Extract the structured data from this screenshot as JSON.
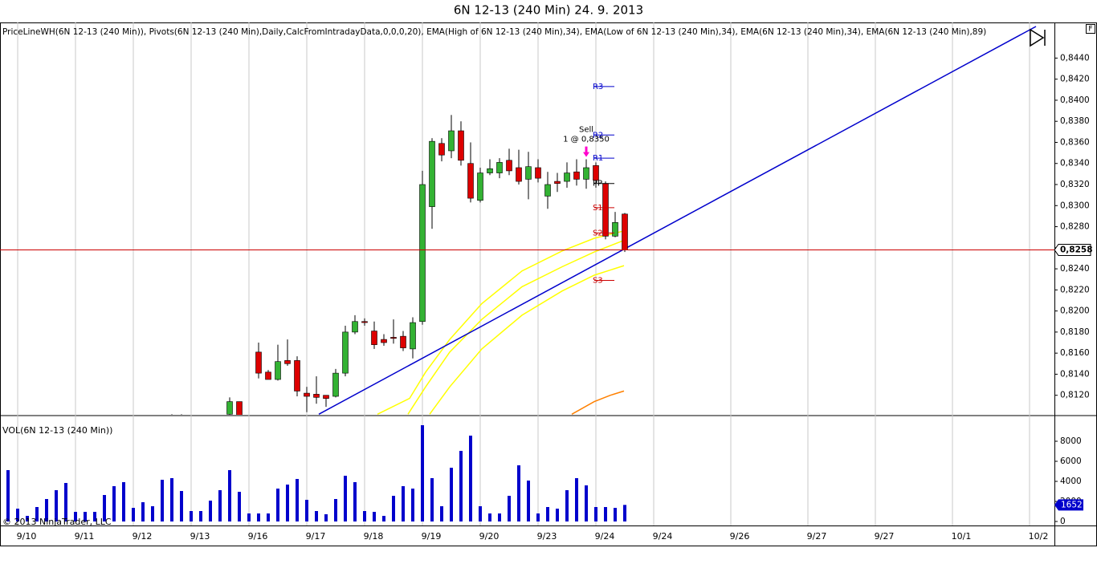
{
  "chart_data": [
    {
      "type": "candlestick",
      "title": "6N 12-13 (240 Min)  24. 9. 2013",
      "legend_text": "PriceLineWH(6N 12-13 (240 Min)), Pivots(6N 12-13 (240 Min),Daily,CalcFromIntradayData,0,0,0,20), EMA(High of 6N 12-13 (240 Min),34), EMA(Low of 6N 12-13 (240 Min),34), EMA(6N 12-13 (240 Min),34), EMA(6N 12-13 (240 Min),89)",
      "button_label": "F",
      "up_color": "#33b233",
      "down_color": "#dd0000",
      "xlim": [
        -0.8333,
        108.5833
      ],
      "ylim": [
        0.81015,
        0.84738
      ],
      "yticks": [
        {
          "value": 0.812,
          "label": "0,8120"
        },
        {
          "value": 0.814,
          "label": "0,8140"
        },
        {
          "value": 0.816,
          "label": "0,8160"
        },
        {
          "value": 0.818,
          "label": "0,8180"
        },
        {
          "value": 0.82,
          "label": "0,8200"
        },
        {
          "value": 0.822,
          "label": "0,8220"
        },
        {
          "value": 0.824,
          "label": "0,8240"
        },
        {
          "value": 0.826,
          "label": "0,8260"
        },
        {
          "value": 0.828,
          "label": "0,8280"
        },
        {
          "value": 0.83,
          "label": "0,8300"
        },
        {
          "value": 0.832,
          "label": "0,8320"
        },
        {
          "value": 0.834,
          "label": "0,8340"
        },
        {
          "value": 0.836,
          "label": "0,8360"
        },
        {
          "value": 0.838,
          "label": "0,8380"
        },
        {
          "value": 0.84,
          "label": "0,8400"
        },
        {
          "value": 0.842,
          "label": "0,8420"
        },
        {
          "value": 0.844,
          "label": "0,8440"
        }
      ],
      "x": [
        0,
        1,
        2,
        3,
        4,
        5,
        6,
        7,
        8,
        9,
        10,
        11,
        12,
        13,
        14,
        15,
        16,
        17,
        18,
        19,
        20,
        21,
        22,
        23,
        24,
        25,
        26,
        27,
        28,
        29,
        30,
        31,
        32,
        33,
        34,
        35,
        36,
        37,
        38,
        39,
        40,
        41,
        42,
        43,
        44,
        45,
        46,
        47,
        48,
        49,
        50,
        51,
        52,
        53,
        54,
        55,
        56,
        57,
        58,
        59,
        60,
        61,
        62,
        63,
        64
      ],
      "open": [
        null,
        null,
        null,
        null,
        null,
        null,
        null,
        null,
        null,
        null,
        null,
        null,
        null,
        null,
        null,
        null,
        null,
        0.8097,
        0.8099,
        null,
        null,
        null,
        null,
        0.8102,
        0.8114,
        null,
        0.8161,
        0.8142,
        0.8135,
        0.8153,
        0.8153,
        0.8122,
        0.8121,
        0.812,
        0.8119,
        0.8141,
        0.818,
        0.819,
        0.8181,
        0.8173,
        0.8175,
        0.8176,
        0.8164,
        0.819,
        0.8299,
        0.8359,
        0.8352,
        0.8371,
        0.834,
        0.8305,
        0.8331,
        0.8331,
        0.8343,
        0.8336,
        0.8325,
        0.8336,
        0.8309,
        0.8323,
        0.8323,
        0.8332,
        0.8325,
        0.8338,
        0.8321,
        0.8271,
        0.8292
      ],
      "high": [
        null,
        null,
        null,
        null,
        null,
        null,
        null,
        null,
        null,
        null,
        null,
        null,
        null,
        null,
        null,
        null,
        null,
        0.8102,
        0.8102,
        null,
        null,
        null,
        null,
        0.8118,
        0.8114,
        null,
        0.817,
        0.8144,
        0.8168,
        0.8173,
        0.8157,
        0.8128,
        0.8138,
        0.812,
        0.8145,
        0.8186,
        0.8196,
        0.8193,
        0.819,
        0.8178,
        0.8192,
        0.8181,
        0.8194,
        0.8333,
        0.8364,
        0.8364,
        0.8386,
        0.838,
        0.836,
        0.8336,
        0.8344,
        0.8345,
        0.8354,
        0.8353,
        0.8351,
        0.8344,
        0.8332,
        0.8331,
        0.8341,
        0.8344,
        0.8344,
        0.8341,
        0.8323,
        0.8294,
        0.8293
      ],
      "low": [
        null,
        null,
        null,
        null,
        null,
        null,
        null,
        null,
        null,
        null,
        null,
        null,
        null,
        null,
        null,
        null,
        null,
        0.8094,
        0.8095,
        null,
        null,
        null,
        null,
        0.8098,
        0.8098,
        null,
        0.8136,
        0.8135,
        0.8134,
        0.8148,
        0.8119,
        0.8104,
        0.8112,
        0.8109,
        0.8118,
        0.8138,
        0.8178,
        0.8186,
        0.8164,
        0.8167,
        0.8169,
        0.8162,
        0.8155,
        0.8187,
        0.8278,
        0.8342,
        0.8345,
        0.8338,
        0.8303,
        0.8303,
        0.8329,
        0.8326,
        0.8329,
        0.832,
        0.8306,
        0.8322,
        0.8297,
        0.8313,
        0.8317,
        0.8319,
        0.8316,
        0.8317,
        0.8268,
        0.827,
        0.8256
      ],
      "close": [
        null,
        null,
        null,
        null,
        null,
        null,
        null,
        null,
        null,
        null,
        null,
        null,
        null,
        null,
        null,
        null,
        null,
        0.8099,
        0.8097,
        null,
        null,
        null,
        null,
        0.8114,
        0.81,
        null,
        0.8141,
        0.8135,
        0.8152,
        0.815,
        0.8124,
        0.8119,
        0.8118,
        0.8117,
        0.8141,
        0.818,
        0.819,
        0.8189,
        0.8168,
        0.817,
        0.8174,
        0.8165,
        0.8189,
        0.832,
        0.8361,
        0.8348,
        0.8371,
        0.8343,
        0.8307,
        0.8331,
        0.8335,
        0.8341,
        0.8333,
        0.8323,
        0.8337,
        0.8326,
        0.832,
        0.8321,
        0.8331,
        0.8325,
        0.8336,
        0.8324,
        0.8271,
        0.8284,
        0.8258
      ],
      "overlays": [
        {
          "color": "#ffff00",
          "x": [
            38.33,
            41.67,
            43.33,
            45.83,
            49.17,
            53.33,
            57.5,
            60.83,
            63.92
          ],
          "values": [
            0.8102,
            0.8117,
            0.8142,
            0.8173,
            0.8207,
            0.8238,
            0.8257,
            0.8269,
            0.8276
          ]
        },
        {
          "color": "#ffff00",
          "x": [
            41.5,
            43.33,
            45.83,
            49.17,
            53.33,
            57.5,
            60.83,
            63.92
          ],
          "values": [
            0.8102,
            0.8128,
            0.8161,
            0.8192,
            0.8223,
            0.8242,
            0.8256,
            0.8267
          ]
        },
        {
          "color": "#ffff00",
          "x": [
            43.75,
            45.83,
            49.17,
            53.33,
            57.5,
            60.83,
            63.92
          ],
          "values": [
            0.8102,
            0.8128,
            0.8164,
            0.8196,
            0.8219,
            0.8234,
            0.8243
          ]
        },
        {
          "color": "#ff8000",
          "x": [
            58.5,
            60.83,
            62.5,
            63.92
          ],
          "values": [
            0.8102,
            0.8114,
            0.812,
            0.8124
          ]
        },
        {
          "color": "#0000cc",
          "x": [
            32.25,
            106.67
          ],
          "values": [
            0.8102,
            0.847
          ]
        }
      ],
      "last_price": {
        "value": 0.8258,
        "label": "0,8258",
        "color": "#cc0000"
      },
      "pivots": {
        "labels": [
          "R3",
          "R2",
          "R1",
          "PP",
          "S1",
          "S2",
          "S3"
        ],
        "values": [
          0.8413,
          0.8367,
          0.8345,
          0.8321,
          0.8298,
          0.8274,
          0.8229
        ],
        "colors": [
          "#0000cc",
          "#0000cc",
          "#0000cc",
          "#000000",
          "#cc0000",
          "#cc0000",
          "#cc0000"
        ],
        "x_range": [
          60.83,
          62.92
        ]
      },
      "annotation": {
        "text": "Sell",
        "detail": "1 @ 0,8350",
        "x": 60,
        "value": 0.835,
        "color": "#ff00cc"
      }
    },
    {
      "type": "bar",
      "title": "VOL(6N 12-13 (240 Min))",
      "copyright": "© 2013 NinjaTrader, LLC",
      "color": "#0000cc",
      "xlim": [
        -0.8333,
        108.5833
      ],
      "ylim": [
        -400,
        10480
      ],
      "yticks": [
        0,
        2000,
        4000,
        6000,
        8000
      ],
      "grid": true,
      "xticks": [
        {
          "value": 1,
          "label": "9/10"
        },
        {
          "value": 7,
          "label": "9/11"
        },
        {
          "value": 13,
          "label": "9/12"
        },
        {
          "value": 19,
          "label": "9/13"
        },
        {
          "value": 25,
          "label": "9/16"
        },
        {
          "value": 31,
          "label": "9/17"
        },
        {
          "value": 37,
          "label": "9/18"
        },
        {
          "value": 43,
          "label": "9/19"
        },
        {
          "value": 49,
          "label": "9/20"
        },
        {
          "value": 55,
          "label": "9/23"
        },
        {
          "value": 61,
          "label": "9/24"
        },
        {
          "value": 67,
          "label": "9/24"
        },
        {
          "value": 75,
          "label": "9/26"
        },
        {
          "value": 83,
          "label": "9/27"
        },
        {
          "value": 90,
          "label": "9/27"
        },
        {
          "value": 98,
          "label": "10/1"
        },
        {
          "value": 106,
          "label": "10/2"
        }
      ],
      "x": [
        0,
        1,
        2,
        3,
        4,
        5,
        6,
        7,
        8,
        9,
        10,
        11,
        12,
        13,
        14,
        15,
        16,
        17,
        18,
        19,
        20,
        21,
        22,
        23,
        24,
        25,
        26,
        27,
        28,
        29,
        30,
        31,
        32,
        33,
        34,
        35,
        36,
        37,
        38,
        39,
        40,
        41,
        42,
        43,
        44,
        45,
        46,
        47,
        48,
        49,
        50,
        51,
        52,
        53,
        54,
        55,
        56,
        57,
        58,
        59,
        60,
        61,
        62,
        63,
        64
      ],
      "values": [
        5120,
        1280,
        560,
        1440,
        2240,
        3120,
        3840,
        960,
        960,
        960,
        2640,
        3520,
        3920,
        1360,
        1920,
        1520,
        4160,
        4320,
        3040,
        1040,
        1040,
        2080,
        3120,
        5120,
        2960,
        800,
        800,
        800,
        3280,
        3680,
        4240,
        2160,
        1040,
        720,
        2240,
        4560,
        3920,
        1040,
        960,
        560,
        2560,
        3520,
        3280,
        9600,
        4320,
        1520,
        5360,
        7040,
        8560,
        1520,
        800,
        800,
        2560,
        5600,
        4080,
        800,
        1440,
        1280,
        3120,
        4320,
        3600,
        1440,
        1440,
        1360,
        1652
      ],
      "last_value": 1652
    }
  ]
}
